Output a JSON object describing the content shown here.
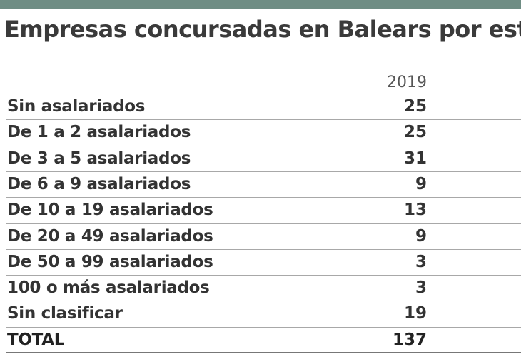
{
  "header": {
    "title": "Empresas concursadas en Balears por est"
  },
  "table": {
    "columns": [
      "2019"
    ],
    "rows": [
      [
        "Sin asalariados",
        25
      ],
      [
        "De 1 a 2 asalariados",
        25
      ],
      [
        "De 3 a 5 asalariados",
        31
      ],
      [
        "De 6 a 9 asalariados",
        9
      ],
      [
        "De 10 a 19 asalariados",
        13
      ],
      [
        "De 20 a 49 asalariados",
        9
      ],
      [
        "De 50 a 99 asalariados",
        3
      ],
      [
        "100 o más asalariados",
        3
      ],
      [
        "Sin clasificar",
        19
      ]
    ],
    "total": [
      "TOTAL",
      137
    ]
  }
}
